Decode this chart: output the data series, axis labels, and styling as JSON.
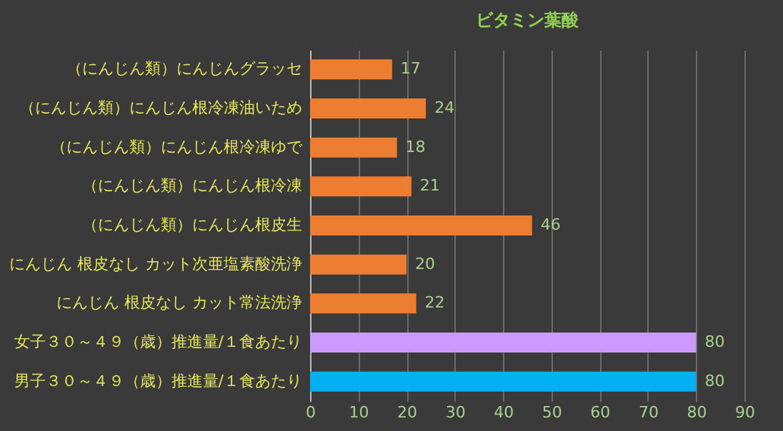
{
  "chart_data": {
    "type": "bar",
    "orientation": "horizontal",
    "title": "ビタミン葉酸",
    "categories": [
      "（にんじん類）にんじんグラッセ",
      "（にんじん類）にんじん根冷凍油いため",
      "（にんじん類）にんじん根冷凍ゆで",
      "（にんじん類）にんじん根冷凍",
      "（にんじん類）にんじん根皮生",
      "にんじん 根皮なし カット次亜塩素酸洗浄",
      "にんじん 根皮なし カット常法洗浄",
      "女子３０～４９（歳）推進量/１食あたり",
      "男子３０～４９（歳）推進量/１食あたり"
    ],
    "values": [
      17,
      24,
      18,
      21,
      46,
      20,
      22,
      80,
      80
    ],
    "colors": [
      "#ed7d31",
      "#ed7d31",
      "#ed7d31",
      "#ed7d31",
      "#ed7d31",
      "#ed7d31",
      "#ed7d31",
      "#cc99ff",
      "#00b0f0"
    ],
    "xlim": [
      0,
      90
    ],
    "xticks": [
      0,
      10,
      20,
      30,
      40,
      50,
      60,
      70,
      80,
      90
    ],
    "grid": "x",
    "data_labels": true
  }
}
